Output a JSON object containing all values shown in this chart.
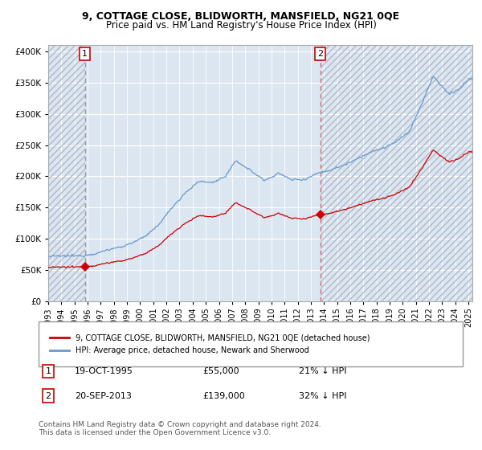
{
  "title": "9, COTTAGE CLOSE, BLIDWORTH, MANSFIELD, NG21 0QE",
  "subtitle": "Price paid vs. HM Land Registry's House Price Index (HPI)",
  "legend_line1": "9, COTTAGE CLOSE, BLIDWORTH, MANSFIELD, NG21 0QE (detached house)",
  "legend_line2": "HPI: Average price, detached house, Newark and Sherwood",
  "sale1_info": "19-OCT-1995",
  "sale1_price": 55000,
  "sale1_price_str": "£55,000",
  "sale1_pct": "21% ↓ HPI",
  "sale1_t": 1995.79,
  "sale2_info": "20-SEP-2013",
  "sale2_price": 139000,
  "sale2_price_str": "£139,000",
  "sale2_pct": "32% ↓ HPI",
  "sale2_t": 2013.71,
  "yticks": [
    0,
    50000,
    100000,
    150000,
    200000,
    250000,
    300000,
    350000,
    400000
  ],
  "ylim": [
    0,
    410000
  ],
  "xlim_start": 1993.0,
  "xlim_end": 2025.3,
  "hpi_color": "#6699cc",
  "price_color": "#cc0000",
  "vline1_color": "#aaaaaa",
  "vline2_color": "#dd6666",
  "bg_color": "#dce6f1",
  "grid_color": "#ffffff",
  "footnote": "Contains HM Land Registry data © Crown copyright and database right 2024.\nThis data is licensed under the Open Government Licence v3.0."
}
